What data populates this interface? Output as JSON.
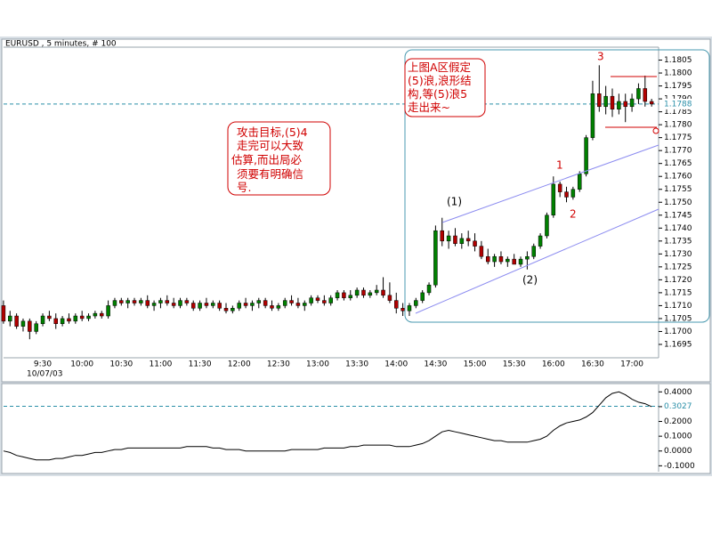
{
  "chart_data": [
    {
      "type": "candlestick",
      "title": "EURUSD , 5 minutes, # 100",
      "date_label": "10/07/03",
      "up_color": "#008000",
      "down_color": "#b00000",
      "ylim": [
        1.169,
        1.181
      ],
      "yticks": [
        1.1695,
        {
          "value": 1.17,
          "label": "1.1700"
        },
        1.1705,
        {
          "value": 1.171,
          "label": "1.1710"
        },
        1.1715,
        {
          "value": 1.172,
          "label": "1.1720"
        },
        1.1725,
        {
          "value": 1.173,
          "label": "1.1730"
        },
        1.1735,
        {
          "value": 1.174,
          "label": "1.1740"
        },
        1.1745,
        {
          "value": 1.175,
          "label": "1.1750"
        },
        1.1755,
        {
          "value": 1.176,
          "label": "1.1760"
        },
        1.1765,
        {
          "value": 1.177,
          "label": "1.1770"
        },
        1.1775,
        {
          "value": 1.178,
          "label": "1.1780"
        },
        1.1785,
        {
          "value": 1.179,
          "label": "1.1790"
        },
        1.1795,
        {
          "value": 1.18,
          "label": "1.1800"
        },
        1.1805
      ],
      "price_line": 1.1788,
      "categories": [
        null,
        null,
        null,
        null,
        null,
        null,
        "9:30",
        null,
        null,
        null,
        null,
        null,
        "10:00",
        null,
        null,
        null,
        null,
        null,
        "10:30",
        null,
        null,
        null,
        null,
        null,
        "11:00",
        null,
        null,
        null,
        null,
        null,
        "11:30",
        null,
        null,
        null,
        null,
        null,
        "12:00",
        null,
        null,
        null,
        null,
        null,
        "12:30",
        null,
        null,
        null,
        null,
        null,
        "13:00",
        null,
        null,
        null,
        null,
        null,
        "13:30",
        null,
        null,
        null,
        null,
        null,
        "14:00",
        null,
        null,
        null,
        null,
        null,
        "14:30",
        null,
        null,
        null,
        null,
        null,
        "15:00",
        null,
        null,
        null,
        null,
        null,
        "15:30",
        null,
        null,
        null,
        null,
        null,
        "16:00",
        null,
        null,
        null,
        null,
        null,
        "16:30",
        null,
        null,
        null,
        null,
        null,
        "17:00",
        null,
        null,
        null
      ],
      "ohlc": [
        [
          1.171,
          1.1712,
          1.1703,
          1.1704
        ],
        [
          1.1704,
          1.1708,
          1.1702,
          1.1706
        ],
        [
          1.1706,
          1.1707,
          1.1701,
          1.1702
        ],
        [
          1.1702,
          1.1705,
          1.17,
          1.1704
        ],
        [
          1.1704,
          1.1705,
          1.1697,
          1.17
        ],
        [
          1.17,
          1.1704,
          1.1699,
          1.1703
        ],
        [
          1.1703,
          1.1707,
          1.1702,
          1.1706
        ],
        [
          1.1706,
          1.1708,
          1.1704,
          1.1705
        ],
        [
          1.1705,
          1.1707,
          1.1701,
          1.1703
        ],
        [
          1.1703,
          1.1706,
          1.1702,
          1.1705
        ],
        [
          1.1705,
          1.1707,
          1.1703,
          1.1704
        ],
        [
          1.1704,
          1.1707,
          1.1703,
          1.1706
        ],
        [
          1.1706,
          1.1708,
          1.1704,
          1.1705
        ],
        [
          1.1705,
          1.1707,
          1.1704,
          1.1706
        ],
        [
          1.1706,
          1.1708,
          1.1705,
          1.1707
        ],
        [
          1.1707,
          1.1708,
          1.1705,
          1.1706
        ],
        [
          1.1706,
          1.1712,
          1.1705,
          1.171
        ],
        [
          1.171,
          1.1713,
          1.1709,
          1.1712
        ],
        [
          1.1712,
          1.1713,
          1.171,
          1.1711
        ],
        [
          1.1711,
          1.1713,
          1.1709,
          1.1712
        ],
        [
          1.1712,
          1.1713,
          1.171,
          1.1711
        ],
        [
          1.1711,
          1.1713,
          1.171,
          1.1712
        ],
        [
          1.1712,
          1.1714,
          1.1709,
          1.171
        ],
        [
          1.171,
          1.1712,
          1.1708,
          1.1711
        ],
        [
          1.1711,
          1.1713,
          1.1709,
          1.1712
        ],
        [
          1.1712,
          1.1714,
          1.171,
          1.1711
        ],
        [
          1.1711,
          1.1713,
          1.1709,
          1.171
        ],
        [
          1.171,
          1.1713,
          1.1709,
          1.1712
        ],
        [
          1.1712,
          1.1713,
          1.171,
          1.1711
        ],
        [
          1.1711,
          1.1712,
          1.1708,
          1.1709
        ],
        [
          1.1709,
          1.1712,
          1.1708,
          1.1711
        ],
        [
          1.1711,
          1.1713,
          1.1709,
          1.171
        ],
        [
          1.171,
          1.1712,
          1.1709,
          1.1711
        ],
        [
          1.1711,
          1.1712,
          1.1708,
          1.1709
        ],
        [
          1.1709,
          1.1711,
          1.1707,
          1.1708
        ],
        [
          1.1708,
          1.171,
          1.1707,
          1.1709
        ],
        [
          1.1709,
          1.1712,
          1.1708,
          1.1711
        ],
        [
          1.1711,
          1.1713,
          1.1709,
          1.171
        ],
        [
          1.171,
          1.1712,
          1.1708,
          1.1711
        ],
        [
          1.1711,
          1.1713,
          1.1709,
          1.1712
        ],
        [
          1.1712,
          1.1713,
          1.1709,
          1.171
        ],
        [
          1.171,
          1.1712,
          1.1708,
          1.1709
        ],
        [
          1.1709,
          1.1711,
          1.1708,
          1.171
        ],
        [
          1.171,
          1.1713,
          1.1709,
          1.1712
        ],
        [
          1.1712,
          1.1714,
          1.171,
          1.1711
        ],
        [
          1.1711,
          1.1713,
          1.1709,
          1.171
        ],
        [
          1.171,
          1.1712,
          1.1708,
          1.1711
        ],
        [
          1.1711,
          1.1714,
          1.171,
          1.1713
        ],
        [
          1.1713,
          1.1714,
          1.1711,
          1.1712
        ],
        [
          1.1712,
          1.1714,
          1.171,
          1.1711
        ],
        [
          1.1711,
          1.1714,
          1.171,
          1.1713
        ],
        [
          1.1713,
          1.1716,
          1.1712,
          1.1715
        ],
        [
          1.1715,
          1.1716,
          1.1712,
          1.1713
        ],
        [
          1.1713,
          1.1716,
          1.1712,
          1.1714
        ],
        [
          1.1714,
          1.1717,
          1.1713,
          1.1716
        ],
        [
          1.1716,
          1.1717,
          1.1713,
          1.1714
        ],
        [
          1.1714,
          1.1716,
          1.1713,
          1.1715
        ],
        [
          1.1715,
          1.1718,
          1.1714,
          1.1716
        ],
        [
          1.1716,
          1.1721,
          1.1713,
          1.1714
        ],
        [
          1.1714,
          1.1719,
          1.1711,
          1.1712
        ],
        [
          1.1712,
          1.1715,
          1.1707,
          1.1709
        ],
        [
          1.1709,
          1.1711,
          1.1706,
          1.1708
        ],
        [
          1.1708,
          1.1711,
          1.1706,
          1.171
        ],
        [
          1.171,
          1.1713,
          1.1709,
          1.1712
        ],
        [
          1.1712,
          1.1716,
          1.1711,
          1.1715
        ],
        [
          1.1715,
          1.1719,
          1.1714,
          1.1718
        ],
        [
          1.1718,
          1.1741,
          1.1717,
          1.1739
        ],
        [
          1.1739,
          1.1744,
          1.1733,
          1.1735
        ],
        [
          1.1735,
          1.1739,
          1.1732,
          1.1737
        ],
        [
          1.1737,
          1.174,
          1.1733,
          1.1734
        ],
        [
          1.1734,
          1.1738,
          1.1732,
          1.1736
        ],
        [
          1.1736,
          1.1739,
          1.1733,
          1.1735
        ],
        [
          1.1735,
          1.1738,
          1.1731,
          1.1733
        ],
        [
          1.1733,
          1.1735,
          1.1728,
          1.1729
        ],
        [
          1.1729,
          1.1732,
          1.1726,
          1.1727
        ],
        [
          1.1727,
          1.173,
          1.1725,
          1.1729
        ],
        [
          1.1729,
          1.1731,
          1.1726,
          1.1727
        ],
        [
          1.1727,
          1.1729,
          1.1725,
          1.1728
        ],
        [
          1.1728,
          1.173,
          1.1726,
          1.1726
        ],
        [
          1.1726,
          1.1729,
          1.1725,
          1.1728
        ],
        [
          1.1728,
          1.1731,
          1.1724,
          1.1729
        ],
        [
          1.1729,
          1.1734,
          1.1728,
          1.1733
        ],
        [
          1.1733,
          1.1738,
          1.1732,
          1.1737
        ],
        [
          1.1737,
          1.1746,
          1.1736,
          1.1745
        ],
        [
          1.1745,
          1.176,
          1.1744,
          1.1757
        ],
        [
          1.1757,
          1.1758,
          1.1752,
          1.1754
        ],
        [
          1.1754,
          1.1756,
          1.175,
          1.1752
        ],
        [
          1.1752,
          1.1756,
          1.1751,
          1.1755
        ],
        [
          1.1755,
          1.1762,
          1.1754,
          1.1761
        ],
        [
          1.1761,
          1.1776,
          1.176,
          1.1775
        ],
        [
          1.1775,
          1.1797,
          1.1774,
          1.1792
        ],
        [
          1.1792,
          1.1803,
          1.1785,
          1.1787
        ],
        [
          1.1787,
          1.1795,
          1.1784,
          1.1791
        ],
        [
          1.1791,
          1.1794,
          1.1783,
          1.1786
        ],
        [
          1.1786,
          1.1792,
          1.1784,
          1.1789
        ],
        [
          1.1789,
          1.1792,
          1.1781,
          1.1787
        ],
        [
          1.1787,
          1.1792,
          1.1785,
          1.179
        ],
        [
          1.179,
          1.1796,
          1.1788,
          1.1794
        ],
        [
          1.1794,
          1.1799,
          1.1787,
          1.1789
        ],
        [
          1.1789,
          1.179,
          1.1787,
          1.1788
        ]
      ],
      "wave_labels": [
        "(1)",
        "(2)",
        "1",
        "2",
        "3"
      ],
      "callouts": [
        [
          "攻击目标,(5)4",
          "走完可以大致",
          "估算,而出局必",
          "须要有明确信",
          "号."
        ],
        [
          "上图A区假定",
          "(5)浪,浪形结",
          "构,等(5)浪5",
          "走出来~"
        ]
      ]
    },
    {
      "type": "line",
      "color": "#000000",
      "ylim": [
        -0.14,
        0.45
      ],
      "yticks": [
        {
          "value": 0.4,
          "label": "0.4000"
        },
        {
          "value": 0.3,
          "label": "0.3000"
        },
        {
          "value": 0.2,
          "label": "0.2000"
        },
        {
          "value": 0.1,
          "label": "0.1000"
        },
        {
          "value": 0,
          "label": "0.0000"
        },
        {
          "value": -0.1,
          "label": "-0.1000"
        }
      ],
      "level": 0.3027,
      "values": [
        0.0,
        -0.01,
        -0.03,
        -0.04,
        -0.05,
        -0.06,
        -0.06,
        -0.06,
        -0.05,
        -0.05,
        -0.04,
        -0.03,
        -0.03,
        -0.02,
        -0.01,
        -0.01,
        0.0,
        0.01,
        0.01,
        0.02,
        0.02,
        0.02,
        0.02,
        0.02,
        0.02,
        0.02,
        0.02,
        0.02,
        0.03,
        0.03,
        0.03,
        0.03,
        0.02,
        0.02,
        0.01,
        0.01,
        0.01,
        0.0,
        0.0,
        0.0,
        0.0,
        0.0,
        0.0,
        0.0,
        0.01,
        0.01,
        0.01,
        0.01,
        0.01,
        0.02,
        0.02,
        0.02,
        0.02,
        0.03,
        0.03,
        0.04,
        0.04,
        0.04,
        0.04,
        0.04,
        0.03,
        0.03,
        0.03,
        0.04,
        0.05,
        0.07,
        0.1,
        0.13,
        0.14,
        0.13,
        0.12,
        0.11,
        0.1,
        0.09,
        0.08,
        0.07,
        0.07,
        0.06,
        0.06,
        0.06,
        0.06,
        0.07,
        0.08,
        0.1,
        0.14,
        0.17,
        0.19,
        0.2,
        0.21,
        0.23,
        0.26,
        0.31,
        0.36,
        0.39,
        0.4,
        0.38,
        0.35,
        0.33,
        0.32,
        0.3
      ]
    }
  ]
}
